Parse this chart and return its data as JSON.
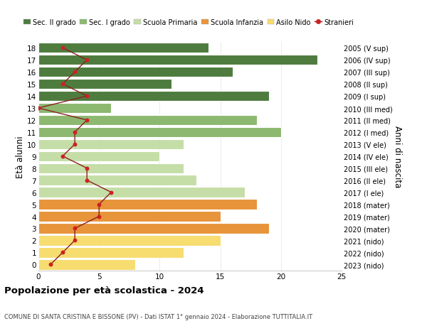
{
  "ages": [
    0,
    1,
    2,
    3,
    4,
    5,
    6,
    7,
    8,
    9,
    10,
    11,
    12,
    13,
    14,
    15,
    16,
    17,
    18
  ],
  "bar_values": [
    8,
    12,
    15,
    19,
    15,
    18,
    17,
    13,
    12,
    10,
    12,
    20,
    18,
    6,
    19,
    11,
    16,
    23,
    14
  ],
  "right_labels": [
    "2023 (nido)",
    "2022 (nido)",
    "2021 (nido)",
    "2020 (mater)",
    "2019 (mater)",
    "2018 (mater)",
    "2017 (I ele)",
    "2016 (II ele)",
    "2015 (III ele)",
    "2014 (IV ele)",
    "2013 (V ele)",
    "2012 (I med)",
    "2011 (II med)",
    "2010 (III med)",
    "2009 (I sup)",
    "2008 (II sup)",
    "2007 (III sup)",
    "2006 (IV sup)",
    "2005 (V sup)"
  ],
  "bar_colors": [
    "#f7dc6f",
    "#f7dc6f",
    "#f7dc6f",
    "#e8943a",
    "#e8943a",
    "#e8943a",
    "#c5dea8",
    "#c5dea8",
    "#c5dea8",
    "#c5dea8",
    "#c5dea8",
    "#8cb870",
    "#8cb870",
    "#8cb870",
    "#4e7c3f",
    "#4e7c3f",
    "#4e7c3f",
    "#4e7c3f",
    "#4e7c3f"
  ],
  "stranieri_values": [
    1,
    2,
    3,
    3,
    5,
    5,
    6,
    4,
    4,
    2,
    3,
    3,
    4,
    0,
    4,
    2,
    3,
    4,
    2
  ],
  "legend_labels": [
    "Sec. II grado",
    "Sec. I grado",
    "Scuola Primaria",
    "Scuola Infanzia",
    "Asilo Nido",
    "Stranieri"
  ],
  "legend_colors": [
    "#4e7c3f",
    "#8cb870",
    "#c5dea8",
    "#e8943a",
    "#f7dc6f",
    "#cc2222"
  ],
  "title": "Popolazione per età scolastica - 2024",
  "subtitle": "COMUNE DI SANTA CRISTINA E BISSONE (PV) - Dati ISTAT 1° gennaio 2024 - Elaborazione TUTTITALIA.IT",
  "ylabel_left": "Età alunni",
  "ylabel_right": "Anni di nascita",
  "xlim": [
    0,
    25
  ],
  "background_color": "#ffffff",
  "grid_color": "#cccccc",
  "bar_edge_color": "#ffffff",
  "stranieri_line_color": "#8b2020",
  "stranieri_dot_color": "#cc2222"
}
